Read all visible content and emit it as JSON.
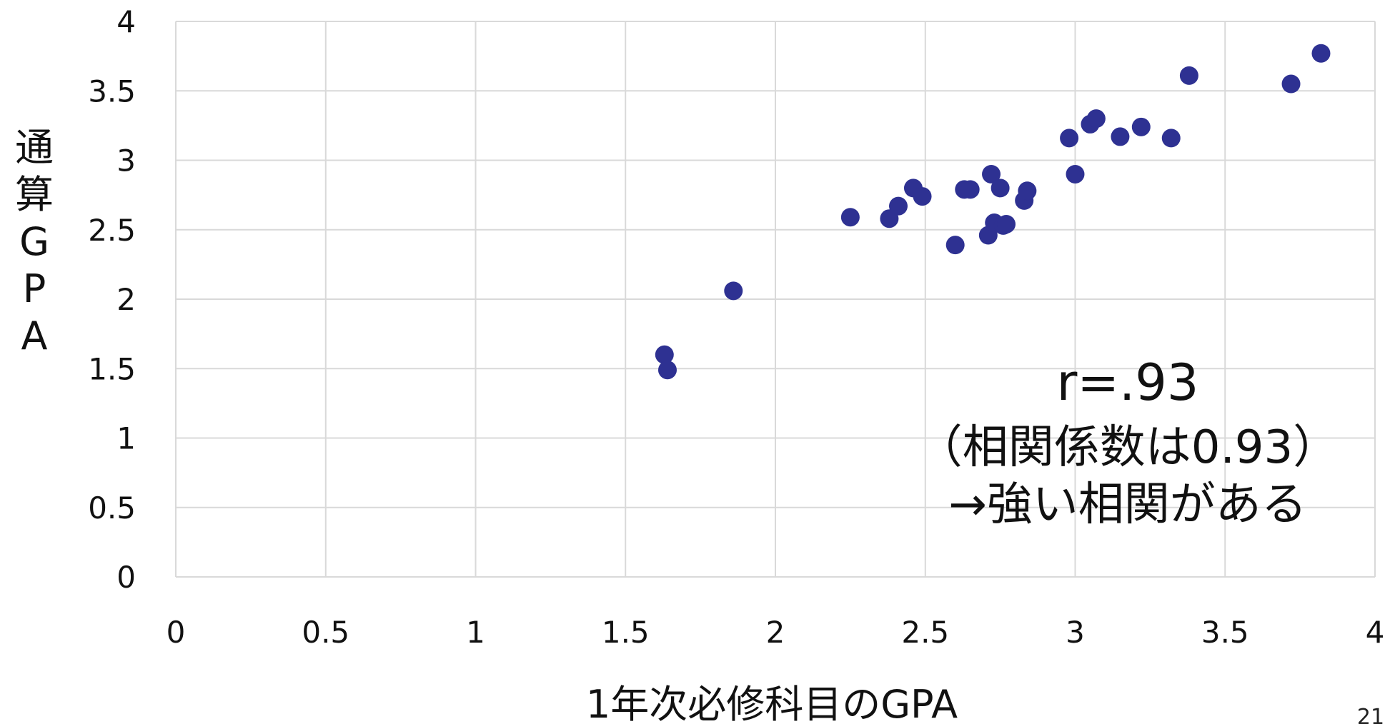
{
  "chart_data": {
    "type": "scatter",
    "title": "",
    "xlabel": "1年次必修科目のGPA",
    "ylabel": "通算GPA",
    "xlim": [
      0,
      4
    ],
    "ylim": [
      0,
      4
    ],
    "x_ticks": [
      "0",
      "0.5",
      "1",
      "1.5",
      "2",
      "2.5",
      "3",
      "3.5",
      "4"
    ],
    "y_ticks": [
      "0",
      "0.5",
      "1",
      "1.5",
      "2",
      "2.5",
      "3",
      "3.5",
      "4"
    ],
    "grid": true,
    "marker_color": "#2e3192",
    "points": [
      {
        "x": 1.63,
        "y": 1.6
      },
      {
        "x": 1.64,
        "y": 1.49
      },
      {
        "x": 1.86,
        "y": 2.06
      },
      {
        "x": 2.25,
        "y": 2.59
      },
      {
        "x": 2.38,
        "y": 2.58
      },
      {
        "x": 2.41,
        "y": 2.67
      },
      {
        "x": 2.46,
        "y": 2.8
      },
      {
        "x": 2.49,
        "y": 2.74
      },
      {
        "x": 2.6,
        "y": 2.39
      },
      {
        "x": 2.63,
        "y": 2.79
      },
      {
        "x": 2.65,
        "y": 2.79
      },
      {
        "x": 2.71,
        "y": 2.46
      },
      {
        "x": 2.72,
        "y": 2.9
      },
      {
        "x": 2.73,
        "y": 2.55
      },
      {
        "x": 2.75,
        "y": 2.8
      },
      {
        "x": 2.76,
        "y": 2.53
      },
      {
        "x": 2.77,
        "y": 2.54
      },
      {
        "x": 2.83,
        "y": 2.71
      },
      {
        "x": 2.84,
        "y": 2.78
      },
      {
        "x": 2.98,
        "y": 3.16
      },
      {
        "x": 3.0,
        "y": 2.9
      },
      {
        "x": 3.05,
        "y": 3.26
      },
      {
        "x": 3.07,
        "y": 3.3
      },
      {
        "x": 3.15,
        "y": 3.17
      },
      {
        "x": 3.22,
        "y": 3.24
      },
      {
        "x": 3.32,
        "y": 3.16
      },
      {
        "x": 3.38,
        "y": 3.61
      },
      {
        "x": 3.72,
        "y": 3.55
      },
      {
        "x": 3.82,
        "y": 3.77
      }
    ],
    "annotations": [
      "r=.93",
      "（相関係数は0.93）",
      "→強い相関がある"
    ]
  },
  "page_number": "21"
}
